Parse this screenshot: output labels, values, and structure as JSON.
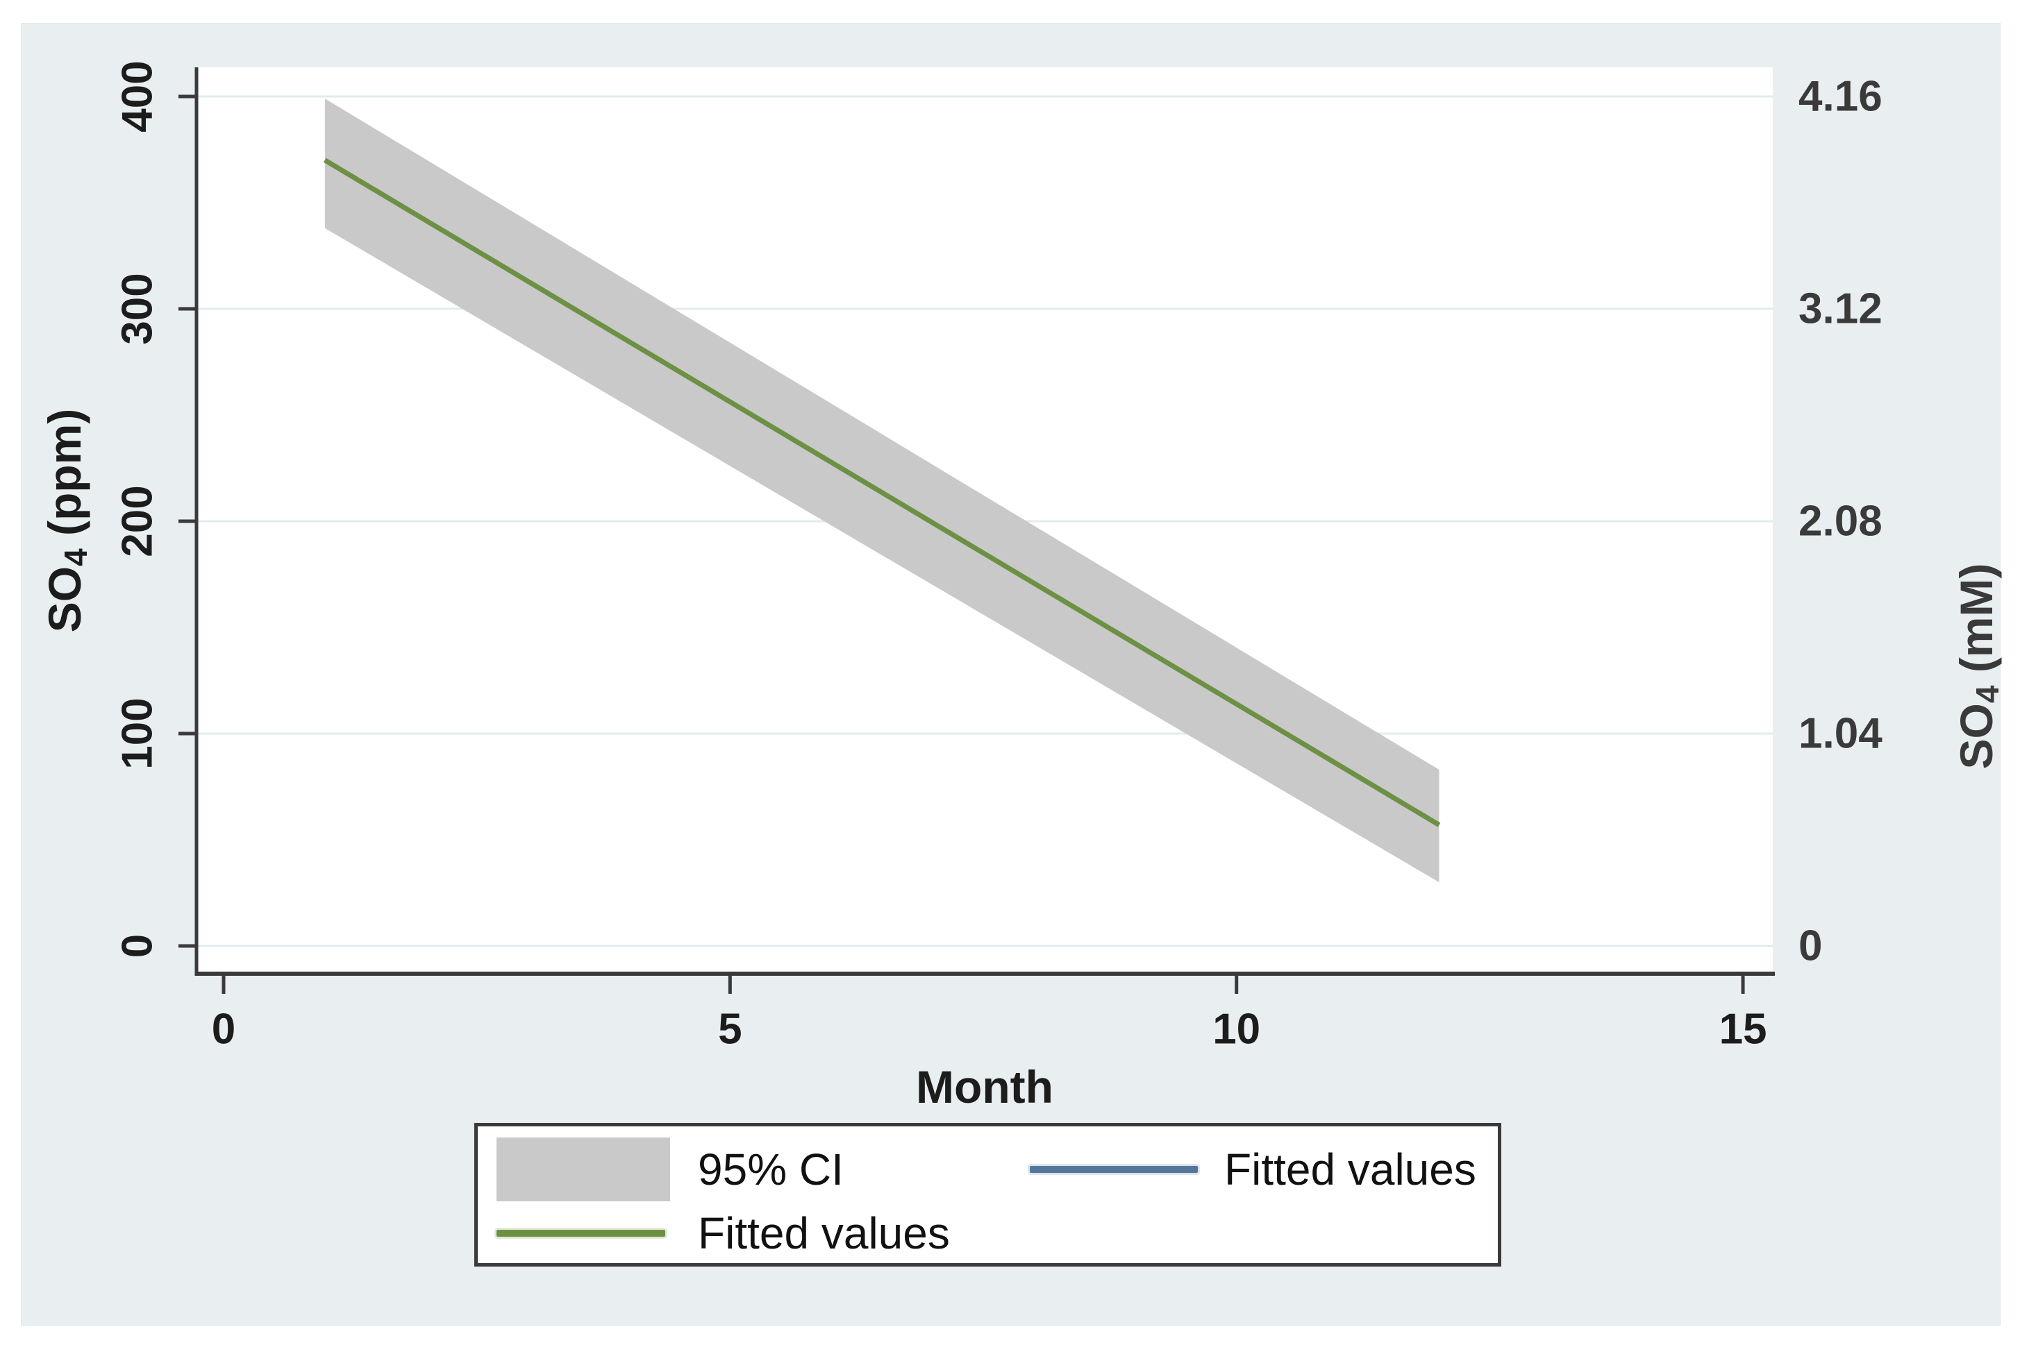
{
  "colors": {
    "page_background": "#ffffff",
    "chart_background": "#e9eff1",
    "plot_background": "#ffffff",
    "gridline": "#e2ecef",
    "axis": "#3a3a3a",
    "tick_text": "#1c1c1c",
    "right_axis_text": "#3a3a3a",
    "ci_band": "#c9c9c9",
    "fitted_navy": "#53779a",
    "fitted_green": "#6d9143",
    "legend_background": "#ffffff",
    "legend_border": "#3a3a3a"
  },
  "chart_data": {
    "type": "line",
    "title": "",
    "xlabel": "Month",
    "x_range": [
      0,
      15
    ],
    "x_ticks": [
      "0",
      "5",
      "10",
      "15"
    ],
    "x_tick_values": [
      0,
      5,
      10,
      15
    ],
    "y_left": {
      "label": "SO₄ (ppm)",
      "label_parts": [
        "SO",
        "4",
        " (ppm)"
      ],
      "ticks": [
        "0",
        "100",
        "200",
        "300",
        "400"
      ],
      "tick_values": [
        0,
        100,
        200,
        300,
        400
      ],
      "range": [
        0,
        414
      ]
    },
    "y_right": {
      "label": "SO₄ (mM)",
      "label_parts": [
        "SO",
        "4",
        " (mM)"
      ],
      "ticks": [
        "0",
        "1.04",
        "2.08",
        "3.12",
        "4.16"
      ],
      "tick_positions_ppm": [
        0,
        100,
        200,
        300,
        400
      ]
    },
    "grid": true,
    "legend_position": "bottom",
    "series": [
      {
        "name": "Fitted values",
        "type": "line",
        "color": "#53779a",
        "points": [
          [
            1,
            370
          ],
          [
            12,
            57
          ]
        ]
      },
      {
        "name": "Fitted values",
        "type": "line",
        "color": "#6d9143",
        "points": [
          [
            1,
            370
          ],
          [
            12,
            57
          ]
        ]
      }
    ],
    "ci_band": {
      "name": "95% CI",
      "color": "#c9c9c9",
      "x": [
        1,
        12
      ],
      "lower": [
        338,
        30
      ],
      "upper": [
        399,
        83
      ]
    },
    "legend": [
      {
        "swatch": "band",
        "color": "#c9c9c9",
        "label": "95% CI"
      },
      {
        "swatch": "line",
        "color": "#53779a",
        "label": "Fitted values"
      },
      {
        "swatch": "line",
        "color": "#6d9143",
        "label": "Fitted values"
      }
    ]
  }
}
